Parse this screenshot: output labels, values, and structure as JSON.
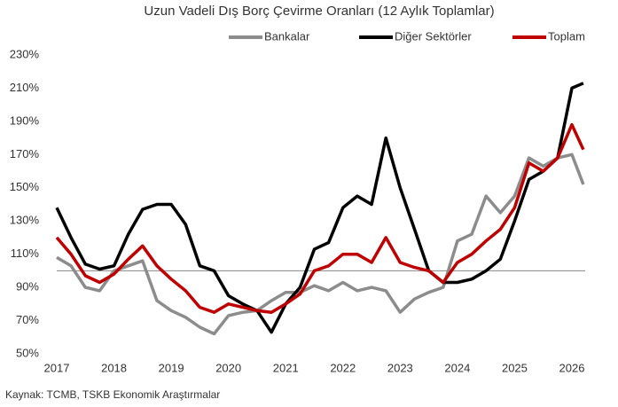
{
  "chart_data": {
    "type": "line",
    "title": "Uzun Vadeli Dış Borç Çevirme Oranları (12 Aylık Toplamlar)",
    "source": "Kaynak: TCMB, TSKB Ekonomik Araştırmalar",
    "x": [
      2017,
      2017.25,
      2017.5,
      2017.75,
      2018,
      2018.25,
      2018.5,
      2018.75,
      2019,
      2019.25,
      2019.5,
      2019.75,
      2020,
      2020.25,
      2020.5,
      2020.75,
      2021,
      2021.25,
      2021.5,
      2021.75,
      2022,
      2022.25,
      2022.5,
      2022.75,
      2023,
      2023.25,
      2023.5,
      2023.75,
      2024,
      2024.25,
      2024.5,
      2024.75,
      2025,
      2025.25,
      2025.5,
      2025.75,
      2026,
      2026.2
    ],
    "series": [
      {
        "name": "Bankalar",
        "color": "#8c8c8c",
        "values": [
          108,
          103,
          90,
          88,
          100,
          103,
          106,
          82,
          76,
          72,
          66,
          62,
          73,
          75,
          76,
          82,
          87,
          87,
          91,
          88,
          93,
          88,
          90,
          88,
          75,
          83,
          87,
          90,
          118,
          122,
          145,
          135,
          145,
          168,
          163,
          168,
          170,
          152
        ]
      },
      {
        "name": "Diğer Sektörler",
        "color": "#000000",
        "values": [
          138,
          120,
          104,
          101,
          103,
          122,
          137,
          140,
          140,
          128,
          103,
          100,
          85,
          80,
          76,
          63,
          80,
          90,
          113,
          117,
          138,
          145,
          140,
          180,
          150,
          125,
          100,
          93,
          93,
          95,
          100,
          107,
          130,
          155,
          160,
          168,
          210,
          213
        ]
      },
      {
        "name": "Toplam",
        "color": "#c00000",
        "values": [
          120,
          110,
          97,
          93,
          98,
          107,
          115,
          103,
          95,
          88,
          78,
          75,
          80,
          78,
          76,
          75,
          80,
          86,
          100,
          103,
          110,
          110,
          105,
          120,
          105,
          102,
          100,
          93,
          105,
          110,
          118,
          125,
          138,
          165,
          160,
          168,
          188,
          173
        ]
      }
    ],
    "xlim": [
      2017,
      2026.2
    ],
    "xticks": [
      2017,
      2018,
      2019,
      2020,
      2021,
      2022,
      2023,
      2024,
      2025,
      2026
    ],
    "ylim": [
      50,
      230
    ],
    "yticks": [
      {
        "value": 50,
        "label": "50%"
      },
      {
        "value": 70,
        "label": "70%"
      },
      {
        "value": 90,
        "label": "90%"
      },
      {
        "value": 110,
        "label": "110%"
      },
      {
        "value": 130,
        "label": "130%"
      },
      {
        "value": 150,
        "label": "150%"
      },
      {
        "value": 170,
        "label": "170%"
      },
      {
        "value": 190,
        "label": "190%"
      },
      {
        "value": 210,
        "label": "210%"
      },
      {
        "value": 230,
        "label": "230%"
      }
    ],
    "reference_line": 100,
    "legend": "top"
  }
}
